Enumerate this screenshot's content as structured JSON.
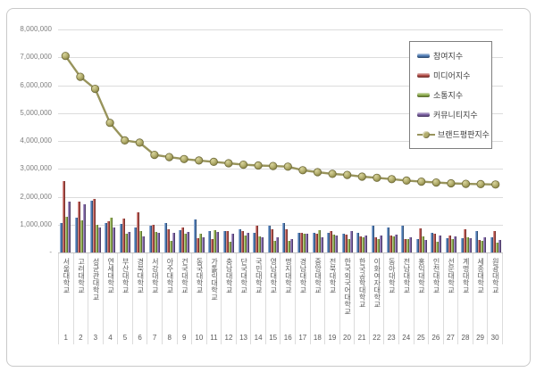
{
  "frame": {
    "background": "#ffffff",
    "border_color": "#c9c9c9"
  },
  "chart_data": {
    "type": "bar",
    "title": "",
    "xlabel": "",
    "ylabel": "",
    "ylim": [
      0,
      8000000
    ],
    "grid": true,
    "legend_position": "upper-right",
    "y_tick_labels": [
      "8,000,000",
      "7,000,000",
      "6,000,000",
      "5,000,000",
      "4,000,000",
      "3,000,000",
      "2,000,000",
      "1,000,000",
      "-"
    ],
    "categories": [
      "서울대학교",
      "고려대학교",
      "성균관대학교",
      "연세대학교",
      "부산대학교",
      "경북대학교",
      "서강대학교",
      "아주대학교",
      "건국대학교",
      "동국대학교",
      "가톨릭대학교",
      "충남대학교",
      "단국대학교",
      "국민대학교",
      "영남대학교",
      "명지대학교",
      "경남대학교",
      "중앙대학교",
      "전북대학교",
      "한국외국어대학교",
      "한국공학대학교",
      "이화여자대학교",
      "동아대학교",
      "전남대학교",
      "홍익대학교",
      "인천대학교",
      "선문대학교",
      "계명대학교",
      "세종대학교",
      "원광대학교"
    ],
    "ranks": [
      "1",
      "2",
      "3",
      "4",
      "5",
      "6",
      "7",
      "8",
      "9",
      "10",
      "11",
      "12",
      "13",
      "14",
      "15",
      "16",
      "17",
      "18",
      "19",
      "20",
      "21",
      "22",
      "23",
      "24",
      "25",
      "26",
      "27",
      "28",
      "29",
      "30"
    ],
    "series": [
      {
        "name": "참여지수",
        "kind": "bar",
        "color": "#4f7cb5",
        "values": [
          1070000,
          1250000,
          1860000,
          1070000,
          1020000,
          890000,
          950000,
          1070000,
          810000,
          1180000,
          760000,
          770000,
          840000,
          710000,
          950000,
          1070000,
          700000,
          700000,
          700000,
          680000,
          700000,
          950000,
          890000,
          950000,
          470000,
          720000,
          510000,
          500000,
          780000,
          550000
        ]
      },
      {
        "name": "미디어지수",
        "kind": "bar",
        "color": "#b5504a",
        "values": [
          2550000,
          1830000,
          1910000,
          1130000,
          1220000,
          1430000,
          980000,
          840000,
          890000,
          520000,
          490000,
          770000,
          770000,
          970000,
          820000,
          820000,
          720000,
          680000,
          770000,
          650000,
          590000,
          540000,
          620000,
          470000,
          870000,
          680000,
          620000,
          820000,
          440000,
          760000
        ]
      },
      {
        "name": "소통지수",
        "kind": "bar",
        "color": "#8fae4e",
        "values": [
          1270000,
          1160000,
          1000000,
          1240000,
          680000,
          780000,
          730000,
          410000,
          670000,
          680000,
          810000,
          380000,
          620000,
          570000,
          410000,
          410000,
          680000,
          790000,
          650000,
          470000,
          540000,
          470000,
          590000,
          470000,
          590000,
          380000,
          470000,
          550000,
          420000,
          340000
        ]
      },
      {
        "name": "커뮤니티지수",
        "kind": "bar",
        "color": "#7b61a3",
        "values": [
          1810000,
          1730000,
          890000,
          890000,
          730000,
          570000,
          720000,
          700000,
          740000,
          560000,
          730000,
          660000,
          710000,
          550000,
          540000,
          470000,
          660000,
          540000,
          620000,
          760000,
          620000,
          620000,
          650000,
          550000,
          440000,
          620000,
          570000,
          500000,
          550000,
          440000
        ]
      },
      {
        "name": "브랜드평판지수",
        "kind": "line",
        "color": "#98945c",
        "marker_fill": "#b3ae6e",
        "marker_edge": "#6e6a39",
        "values": [
          7050000,
          6300000,
          5870000,
          4650000,
          4020000,
          3940000,
          3500000,
          3420000,
          3350000,
          3300000,
          3250000,
          3200000,
          3150000,
          3120000,
          3100000,
          3080000,
          2950000,
          2880000,
          2820000,
          2780000,
          2720000,
          2680000,
          2630000,
          2580000,
          2540000,
          2510000,
          2480000,
          2460000,
          2450000,
          2440000
        ]
      }
    ]
  }
}
